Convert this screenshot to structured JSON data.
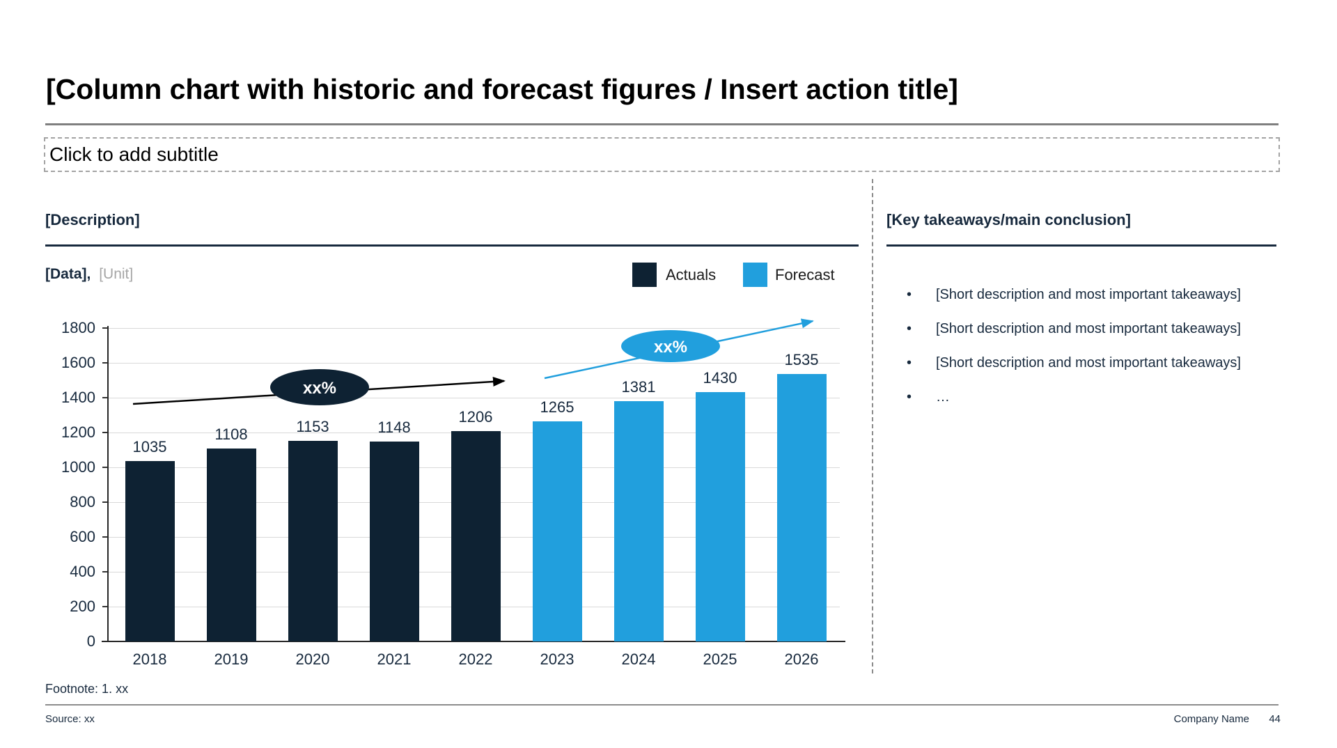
{
  "header": {
    "title": "[Column chart with historic and forecast figures / Insert action title]",
    "subtitle_placeholder": "Click to add subtitle"
  },
  "left_panel": {
    "heading": "[Description]",
    "data_label": "[Data],",
    "unit_label": "[Unit]"
  },
  "right_panel": {
    "heading": "[Key takeaways/main conclusion]",
    "bullets": [
      "[Short description and most important takeaways]",
      "[Short description and most important takeaways]",
      "[Short description and most important takeaways]",
      "…"
    ]
  },
  "chart_data": {
    "type": "bar",
    "title": "[Data], [Unit]",
    "categories": [
      "2018",
      "2019",
      "2020",
      "2021",
      "2022",
      "2023",
      "2024",
      "2025",
      "2026"
    ],
    "series": [
      {
        "name": "Actuals",
        "color": "#0e2233",
        "values": [
          1035,
          1108,
          1153,
          1148,
          1206,
          null,
          null,
          null,
          null
        ]
      },
      {
        "name": "Forecast",
        "color": "#219fdd",
        "values": [
          null,
          null,
          null,
          null,
          null,
          1265,
          1381,
          1430,
          1535
        ]
      }
    ],
    "ylim": [
      0,
      1800
    ],
    "ytick_step": 200,
    "grid": "horizontal",
    "legend_position": "top-right",
    "annotations": [
      {
        "label": "xx%",
        "series": "Actuals",
        "fill": "#0e2233",
        "text_color": "#ffffff",
        "arrow_color": "#000000"
      },
      {
        "label": "xx%",
        "series": "Forecast",
        "fill": "#219fdd",
        "text_color": "#ffffff",
        "arrow_color": "#219fdd"
      }
    ]
  },
  "footer": {
    "footnote": "Footnote: 1. xx",
    "source": "Source: xx",
    "company": "Company Name",
    "page": "44"
  }
}
